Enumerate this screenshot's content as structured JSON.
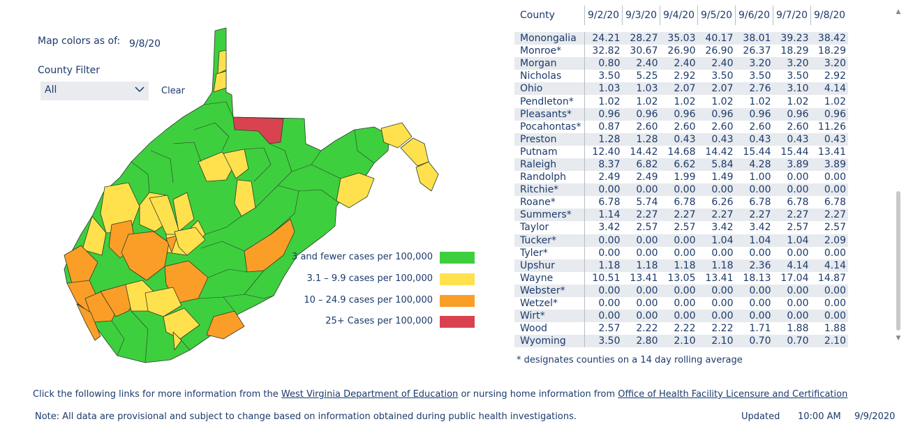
{
  "controls": {
    "map_colors_label": "Map colors as of:",
    "map_colors_date": "9/8/20",
    "county_filter_label": "County Filter",
    "county_filter_value": "All",
    "clear_label": "Clear"
  },
  "colors": {
    "green": "#3ecf3e",
    "yellow": "#ffe14d",
    "orange": "#fb9e27",
    "red": "#d9434f"
  },
  "legend": [
    {
      "label": "3 and fewer cases per 100,000",
      "color": "#3ecf3e"
    },
    {
      "label": "3.1 – 9.9 cases per 100,000",
      "color": "#ffe14d"
    },
    {
      "label": "10 – 24.9 cases per 100,000",
      "color": "#fb9e27"
    },
    {
      "label": "25+ Cases per 100,000",
      "color": "#d9434f"
    }
  ],
  "table": {
    "county_header": "County",
    "dates": [
      "9/2/20",
      "9/3/20",
      "9/4/20",
      "9/5/20",
      "9/6/20",
      "9/7/20",
      "9/8/20"
    ],
    "rows": [
      {
        "county": "Monongalia",
        "values": [
          "24.21",
          "28.27",
          "35.03",
          "40.17",
          "38.01",
          "39.23",
          "38.42"
        ]
      },
      {
        "county": "Monroe*",
        "values": [
          "32.82",
          "30.67",
          "26.90",
          "26.90",
          "26.37",
          "18.29",
          "18.29"
        ]
      },
      {
        "county": "Morgan",
        "values": [
          "0.80",
          "2.40",
          "2.40",
          "2.40",
          "3.20",
          "3.20",
          "3.20"
        ]
      },
      {
        "county": "Nicholas",
        "values": [
          "3.50",
          "5.25",
          "2.92",
          "3.50",
          "3.50",
          "3.50",
          "2.92"
        ]
      },
      {
        "county": "Ohio",
        "values": [
          "1.03",
          "1.03",
          "2.07",
          "2.07",
          "2.76",
          "3.10",
          "4.14"
        ]
      },
      {
        "county": "Pendleton*",
        "values": [
          "1.02",
          "1.02",
          "1.02",
          "1.02",
          "1.02",
          "1.02",
          "1.02"
        ]
      },
      {
        "county": "Pleasants*",
        "values": [
          "0.96",
          "0.96",
          "0.96",
          "0.96",
          "0.96",
          "0.96",
          "0.96"
        ]
      },
      {
        "county": "Pocahontas*",
        "values": [
          "0.87",
          "2.60",
          "2.60",
          "2.60",
          "2.60",
          "2.60",
          "11.26"
        ]
      },
      {
        "county": "Preston",
        "values": [
          "1.28",
          "1.28",
          "0.43",
          "0.43",
          "0.43",
          "0.43",
          "0.43"
        ]
      },
      {
        "county": "Putnam",
        "values": [
          "12.40",
          "14.42",
          "14.68",
          "14.42",
          "15.44",
          "15.44",
          "13.41"
        ]
      },
      {
        "county": "Raleigh",
        "values": [
          "8.37",
          "6.82",
          "6.62",
          "5.84",
          "4.28",
          "3.89",
          "3.89"
        ]
      },
      {
        "county": "Randolph",
        "values": [
          "2.49",
          "2.49",
          "1.99",
          "1.49",
          "1.00",
          "0.00",
          "0.00"
        ]
      },
      {
        "county": "Ritchie*",
        "values": [
          "0.00",
          "0.00",
          "0.00",
          "0.00",
          "0.00",
          "0.00",
          "0.00"
        ]
      },
      {
        "county": "Roane*",
        "values": [
          "6.78",
          "5.74",
          "6.78",
          "6.26",
          "6.78",
          "6.78",
          "6.78"
        ]
      },
      {
        "county": "Summers*",
        "values": [
          "1.14",
          "2.27",
          "2.27",
          "2.27",
          "2.27",
          "2.27",
          "2.27"
        ]
      },
      {
        "county": "Taylor",
        "values": [
          "3.42",
          "2.57",
          "2.57",
          "3.42",
          "3.42",
          "2.57",
          "2.57"
        ]
      },
      {
        "county": "Tucker*",
        "values": [
          "0.00",
          "0.00",
          "0.00",
          "1.04",
          "1.04",
          "1.04",
          "2.09"
        ]
      },
      {
        "county": "Tyler*",
        "values": [
          "0.00",
          "0.00",
          "0.00",
          "0.00",
          "0.00",
          "0.00",
          "0.00"
        ]
      },
      {
        "county": "Upshur",
        "values": [
          "1.18",
          "1.18",
          "1.18",
          "1.18",
          "2.36",
          "4.14",
          "4.14"
        ]
      },
      {
        "county": "Wayne",
        "values": [
          "10.51",
          "13.41",
          "13.05",
          "13.41",
          "18.13",
          "17.04",
          "14.87"
        ]
      },
      {
        "county": "Webster*",
        "values": [
          "0.00",
          "0.00",
          "0.00",
          "0.00",
          "0.00",
          "0.00",
          "0.00"
        ]
      },
      {
        "county": "Wetzel*",
        "values": [
          "0.00",
          "0.00",
          "0.00",
          "0.00",
          "0.00",
          "0.00",
          "0.00"
        ]
      },
      {
        "county": "Wirt*",
        "values": [
          "0.00",
          "0.00",
          "0.00",
          "0.00",
          "0.00",
          "0.00",
          "0.00"
        ]
      },
      {
        "county": "Wood",
        "values": [
          "2.57",
          "2.22",
          "2.22",
          "2.22",
          "1.71",
          "1.88",
          "1.88"
        ]
      },
      {
        "county": "Wyoming",
        "values": [
          "3.50",
          "2.80",
          "2.10",
          "2.10",
          "0.70",
          "0.70",
          "2.10"
        ]
      }
    ]
  },
  "footnote": "* designates counties on a 14 day rolling average",
  "links": {
    "prefix": "Click the following links for more information from the ",
    "doe_link": "West Virginia Department of Education",
    "middle": " or nursing home information from ",
    "ohflac_link": "Office of Health Facility Licensure and Certification"
  },
  "note": "Note: All data are provisional and subject to change based on information obtained during public health investigations.",
  "updated": {
    "label": "Updated",
    "time": "10:00 AM",
    "date": "9/9/2020"
  },
  "icons": {
    "dropdown": "chevron-down-icon",
    "scroll_up": "scroll-up-arrow-icon",
    "scroll_down": "scroll-down-arrow-icon"
  }
}
